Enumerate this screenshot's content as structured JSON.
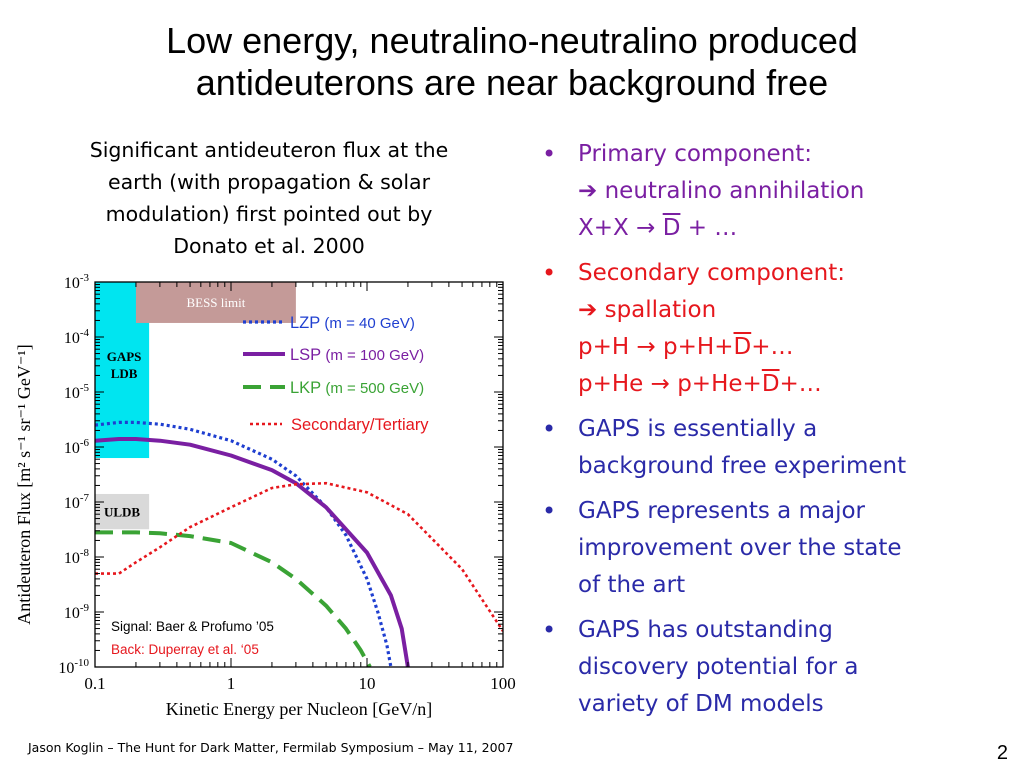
{
  "slide": {
    "title_line1": "Low energy, neutralino-neutralino produced",
    "title_line2": "antideuterons are near background free",
    "caption_line1": "Significant antideuteron flux at the",
    "caption_line2": "earth (with propagation & solar",
    "caption_line3": "modulation) first pointed out by",
    "caption_line4": "Donato et al. 2000",
    "footer": "Jason Koglin – The Hunt for Dark Matter, Fermilab Symposium – May 11, 2007",
    "page_number": "2",
    "colors": {
      "purple": "#7a1fa2",
      "red": "#e6171d",
      "blue": "#2a2aa8"
    }
  },
  "bullets": [
    {
      "color": "purple",
      "line1": "Primary component:",
      "line2_arrow": "➔",
      "line2": "neutralino annihilation",
      "line3_pre": "X+X → ",
      "line3_over": "D",
      "line3_post": " + …"
    },
    {
      "color": "red",
      "line1": "Secondary component:",
      "line2_arrow": "➔",
      "line2": "spallation",
      "line3_pre": "p+H → p+H+",
      "line3_over": "D",
      "line3_post": "+…",
      "line4_pre": "p+He → p+He+",
      "line4_over": "D",
      "line4_post": "+…"
    },
    {
      "color": "blue",
      "line1": "GAPS is essentially a",
      "line2": "background free experiment"
    },
    {
      "color": "blue",
      "line1": "GAPS represents a major",
      "line2": "improvement over the state",
      "line3": "of the art"
    },
    {
      "color": "blue",
      "line1": "GAPS has outstanding",
      "line2": "discovery potential for a",
      "line3": "variety of DM models"
    }
  ],
  "chart_data": {
    "type": "line",
    "xlabel": "Kinetic Energy per Nucleon [GeV/n]",
    "ylabel": "Antideuteron Flux [m² s⁻¹ sr⁻¹ GeV⁻¹]",
    "x_scale": "log",
    "y_scale": "log",
    "xlim": [
      0.1,
      100
    ],
    "ylim": [
      1e-10,
      0.001
    ],
    "x_ticks": [
      {
        "value": 0.1,
        "label": "0.1"
      },
      {
        "value": 1,
        "label": "1"
      },
      {
        "value": 10,
        "label": "10"
      },
      {
        "value": 100,
        "label": "100"
      }
    ],
    "y_ticks": [
      {
        "value": 0.001,
        "base": "10",
        "exp": "-3"
      },
      {
        "value": 0.0001,
        "base": "10",
        "exp": "-4"
      },
      {
        "value": 1e-05,
        "base": "10",
        "exp": "-5"
      },
      {
        "value": 1e-06,
        "base": "10",
        "exp": "-6"
      },
      {
        "value": 1e-07,
        "base": "10",
        "exp": "-7"
      },
      {
        "value": 1e-08,
        "base": "10",
        "exp": "-8"
      },
      {
        "value": 1e-09,
        "base": "10",
        "exp": "-9"
      },
      {
        "value": 1e-10,
        "base": "10",
        "exp": "-10"
      }
    ],
    "regions": [
      {
        "label_line1": "GAPS",
        "label_line2": "LDB",
        "x": [
          0.1,
          0.25
        ],
        "y": [
          6.3e-07,
          0.001
        ],
        "color": "#00e5f0"
      },
      {
        "label_line1": "ULDB",
        "x": [
          0.1,
          0.25
        ],
        "y": [
          3.2e-08,
          1.4e-07
        ],
        "color": "#d9d9d9"
      },
      {
        "label_line1": "BESS limit",
        "x": [
          0.2,
          3.0
        ],
        "y": [
          0.00018,
          0.001
        ],
        "color": "#c49a98"
      }
    ],
    "series": [
      {
        "name": "LZP",
        "param": "(m = 40 GeV)",
        "color": "#1f3fd0",
        "dash": "dotted",
        "x": [
          0.1,
          0.15,
          0.2,
          0.3,
          0.5,
          1,
          2,
          3,
          5,
          7,
          10,
          12,
          14,
          15
        ],
        "y": [
          2.5e-06,
          2.8e-06,
          2.8e-06,
          2.6e-06,
          2.1e-06,
          1.3e-06,
          6e-07,
          3e-07,
          8e-08,
          2.5e-08,
          4e-09,
          1e-09,
          2.5e-10,
          1e-10
        ]
      },
      {
        "name": "LSP",
        "param": "(m = 100 GeV)",
        "color": "#7a1fa2",
        "dash": "solid",
        "x": [
          0.1,
          0.15,
          0.2,
          0.3,
          0.5,
          1,
          2,
          3,
          5,
          10,
          15,
          18,
          20
        ],
        "y": [
          1.3e-06,
          1.4e-06,
          1.4e-06,
          1.3e-06,
          1.1e-06,
          7e-07,
          3.8e-07,
          2.2e-07,
          8e-08,
          1.2e-08,
          2e-09,
          5e-10,
          1e-10
        ]
      },
      {
        "name": "LKP",
        "param": "(m = 500 GeV)",
        "color": "#3aa335",
        "dash": "dashed",
        "x": [
          0.1,
          0.2,
          0.3,
          0.5,
          1,
          2,
          3,
          5,
          7,
          9,
          10.5
        ],
        "y": [
          2.8e-08,
          2.8e-08,
          2.7e-08,
          2.4e-08,
          1.8e-08,
          8e-09,
          4e-09,
          1.3e-09,
          5e-10,
          2e-10,
          1e-10
        ]
      },
      {
        "name": "Secondary/Tertiary",
        "param": "",
        "color": "#e6171d",
        "dash": "dotted",
        "x": [
          0.1,
          0.15,
          0.2,
          0.3,
          0.5,
          1,
          2,
          3,
          5,
          10,
          20,
          50,
          100
        ],
        "y": [
          5e-09,
          5e-09,
          8e-09,
          1.5e-08,
          3.5e-08,
          8e-08,
          1.8e-07,
          2.1e-07,
          2.2e-07,
          1.5e-07,
          6e-08,
          6e-09,
          4.5e-10
        ]
      }
    ],
    "annotations": [
      {
        "text": "Signal: Baer & Profumo ’05",
        "color": "#000000"
      },
      {
        "text": "Back: Duperray et al. ‘05",
        "color": "#e6171d"
      }
    ],
    "legend_placement": "top-right",
    "grid": false
  }
}
